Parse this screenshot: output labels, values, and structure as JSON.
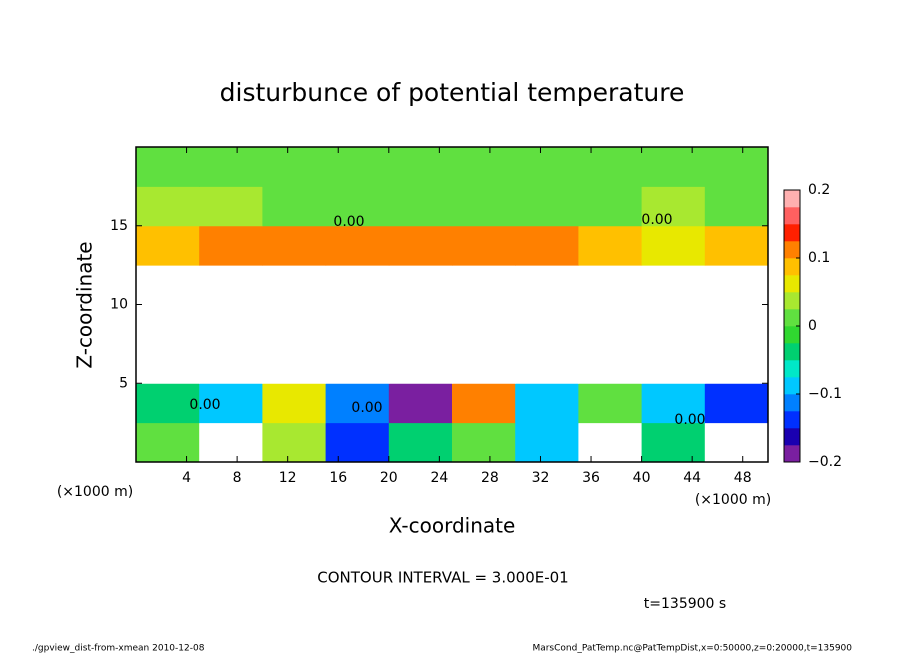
{
  "chart_data": {
    "type": "heatmap",
    "title": "disturbunce of potential temperature",
    "x_label": "X-coordinate",
    "y_label": "Z-coordinate",
    "x_unit": "(×1000 m)",
    "y_unit": "(×1000 m)",
    "xlim": [
      0,
      50
    ],
    "ylim": [
      0,
      20
    ],
    "xticks": [
      4,
      8,
      12,
      16,
      20,
      24,
      28,
      32,
      36,
      40,
      44,
      48
    ],
    "yticks": [
      5,
      10,
      15
    ],
    "x": [
      2.5,
      7.5,
      12.5,
      17.5,
      22.5,
      27.5,
      32.5,
      37.5,
      42.5,
      47.5
    ],
    "y": [
      1.25,
      3.75,
      6.25,
      8.75,
      11.25,
      13.75,
      16.25,
      18.75
    ],
    "z": [
      [
        0.02,
        -0.25,
        0.03,
        -0.15,
        -0.05,
        0.02,
        -0.1,
        -0.25,
        -0.05,
        -0.25
      ],
      [
        -0.05,
        -0.1,
        0.05,
        -0.12,
        -0.18,
        0.1,
        -0.1,
        0.02,
        -0.1,
        -0.15
      ],
      [
        0.3,
        0.3,
        0.3,
        -0.3,
        0.3,
        0.3,
        0.3,
        0.3,
        0.3,
        0.3
      ],
      [
        0.3,
        0.3,
        0.3,
        0.3,
        0.3,
        0.3,
        0.3,
        0.3,
        0.3,
        0.3
      ],
      [
        0.3,
        0.3,
        0.3,
        0.3,
        0.3,
        0.3,
        0.3,
        0.3,
        0.3,
        0.3
      ],
      [
        0.09,
        0.1,
        0.1,
        0.11,
        0.1,
        0.1,
        0.1,
        0.08,
        0.05,
        0.09
      ],
      [
        0.03,
        0.03,
        0.02,
        0.02,
        0.02,
        0.02,
        0.02,
        0.02,
        0.03,
        0.02
      ],
      [
        0.02,
        0.02,
        0.02,
        0.02,
        0.02,
        0.02,
        0.02,
        0.02,
        0.02,
        0.02
      ]
    ],
    "clim": [
      -0.2,
      0.2
    ],
    "cticks": [
      0.2,
      0.1,
      0,
      {
        "value": -0.1,
        "label": "−0.1"
      },
      {
        "value": -0.2,
        "label": "−0.2"
      }
    ],
    "colors": [
      "#7a1fa0",
      "#1a00b0",
      "#0030ff",
      "#0080ff",
      "#00c8ff",
      "#00e8c8",
      "#00d070",
      "#30d830",
      "#60e040",
      "#a8e830",
      "#e8e800",
      "#ffc000",
      "#ff8000",
      "#ff2000",
      "#ff6060",
      "#ffb0b0"
    ],
    "contour_labels": [
      "0.00",
      "0.00",
      "0.00",
      "0.00",
      "0.00"
    ],
    "annotation": "CONTOUR INTERVAL = 3.000E-01",
    "time_label": "t=135900 s",
    "footer_left": "./gpview_dist-from-xmean  2010-12-08",
    "footer_right": "MarsCond_PatTemp.nc@PatTempDist,x=0:50000,z=0:20000,t=135900"
  }
}
